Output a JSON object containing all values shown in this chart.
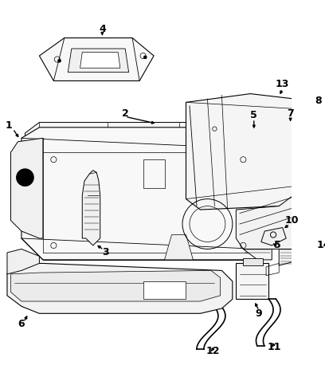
{
  "bg_color": "#ffffff",
  "lc": "#000000",
  "fig_w": 4.08,
  "fig_h": 4.68,
  "dpi": 100
}
